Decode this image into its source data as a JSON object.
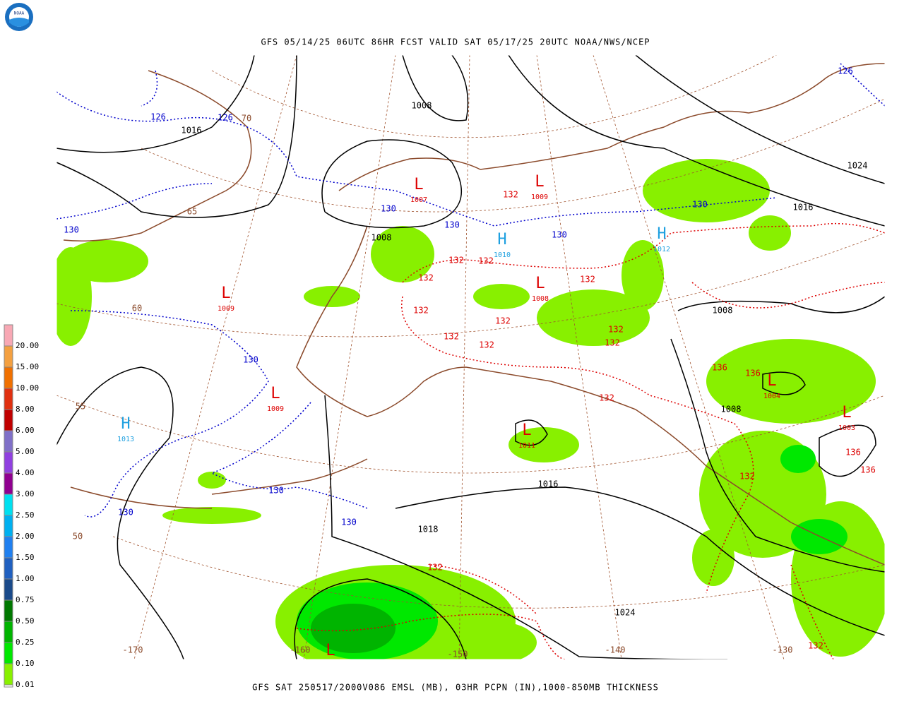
{
  "header": {
    "logo": "NOAA",
    "title": "GFS 05/14/25 06UTC 86HR FCST VALID SAT 05/17/25 20UTC NOAA/NWS/NCEP"
  },
  "footer": "GFS SAT 250517/2000V086 EMSL (MB), 03HR PCPN (IN),1000-850MB THICKNESS",
  "legend": [
    {
      "label": "20.00",
      "color": "#f8a8b4"
    },
    {
      "label": "15.00",
      "color": "#f4a040"
    },
    {
      "label": "10.00",
      "color": "#f07000"
    },
    {
      "label": "8.00",
      "color": "#e03010"
    },
    {
      "label": "6.00",
      "color": "#c00000"
    },
    {
      "label": "5.00",
      "color": "#8070c8"
    },
    {
      "label": "4.00",
      "color": "#9040e0"
    },
    {
      "label": "3.00",
      "color": "#900090"
    },
    {
      "label": "2.50",
      "color": "#00e0f0"
    },
    {
      "label": "2.00",
      "color": "#00b0f0"
    },
    {
      "label": "1.50",
      "color": "#2080f0"
    },
    {
      "label": "1.00",
      "color": "#2060c0"
    },
    {
      "label": "0.75",
      "color": "#1a4a8a"
    },
    {
      "label": "0.50",
      "color": "#007800"
    },
    {
      "label": "0.25",
      "color": "#00b400"
    },
    {
      "label": "0.10",
      "color": "#00e800"
    },
    {
      "label": "0.01",
      "color": "#88f000"
    }
  ],
  "pressure_centers": [
    {
      "symbol": "L",
      "value": "1007"
    },
    {
      "symbol": "L",
      "value": "1009"
    },
    {
      "symbol": "H",
      "value": "1010"
    },
    {
      "symbol": "H",
      "value": "1012"
    },
    {
      "symbol": "L",
      "value": "1008"
    },
    {
      "symbol": "L",
      "value": "1009"
    },
    {
      "symbol": "L",
      "value": "1009"
    },
    {
      "symbol": "H",
      "value": "1013"
    },
    {
      "symbol": "L",
      "value": "1011"
    },
    {
      "symbol": "L",
      "value": "1004"
    },
    {
      "symbol": "L",
      "value": "1003"
    },
    {
      "symbol": "L"
    }
  ],
  "isobar_labels": [
    "1008",
    "1016",
    "1024",
    "1016",
    "1008",
    "1008",
    "1008",
    "1016",
    "1018",
    "1024"
  ],
  "thickness_labels": [
    "126",
    "126",
    "130",
    "130",
    "130",
    "130",
    "130",
    "130",
    "130",
    "130",
    "130",
    "126",
    "132",
    "132",
    "132",
    "132",
    "132",
    "132",
    "132",
    "132",
    "132",
    "132",
    "132",
    "132",
    "132",
    "132",
    "136",
    "136",
    "136",
    "136",
    "132"
  ],
  "graticule_labels": [
    "70",
    "65",
    "60",
    "55",
    "50",
    "-170",
    "-160",
    "-150",
    "-140",
    "-130"
  ]
}
